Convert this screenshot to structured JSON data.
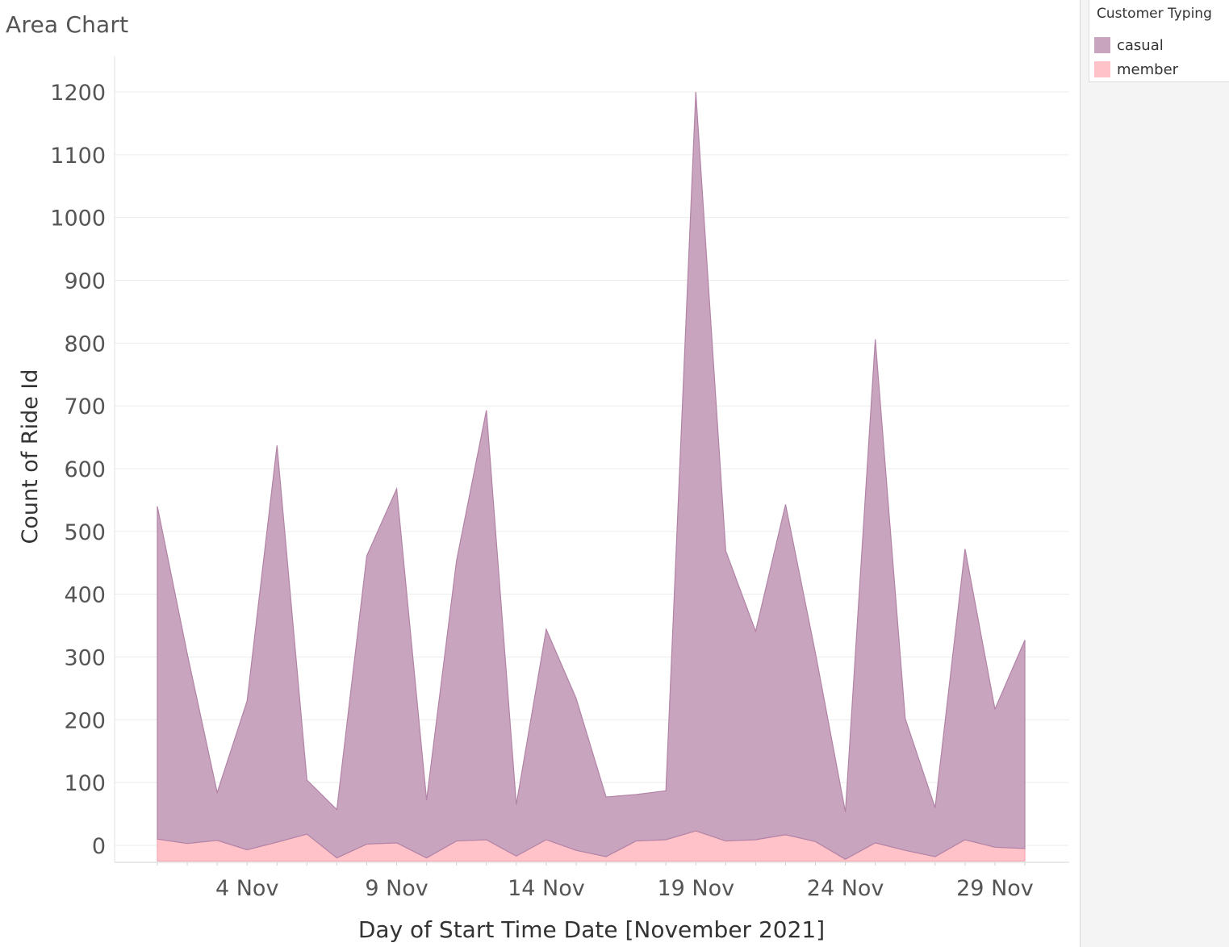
{
  "page": {
    "title": "Area Chart"
  },
  "legend": {
    "title": "Customer Typing",
    "items": [
      {
        "label": "casual",
        "color": "#c9a4bf"
      },
      {
        "label": "member",
        "color": "#ffc2c9"
      }
    ]
  },
  "chart_data": {
    "type": "area",
    "stacked": true,
    "xlabel": "Day of Start Time Date [November 2021]",
    "ylabel": "Count of Ride Id",
    "x": [
      "1 Nov",
      "2 Nov",
      "3 Nov",
      "4 Nov",
      "5 Nov",
      "6 Nov",
      "7 Nov",
      "8 Nov",
      "9 Nov",
      "10 Nov",
      "11 Nov",
      "12 Nov",
      "13 Nov",
      "14 Nov",
      "15 Nov",
      "16 Nov",
      "17 Nov",
      "18 Nov",
      "19 Nov",
      "20 Nov",
      "21 Nov",
      "22 Nov",
      "23 Nov",
      "24 Nov",
      "25 Nov",
      "26 Nov",
      "27 Nov",
      "28 Nov",
      "29 Nov",
      "30 Nov"
    ],
    "x_ticks": [
      "4 Nov",
      "9 Nov",
      "14 Nov",
      "19 Nov",
      "24 Nov",
      "29 Nov"
    ],
    "y_ticks": [
      0,
      100,
      200,
      300,
      400,
      500,
      600,
      700,
      800,
      900,
      1000,
      1100,
      1200
    ],
    "ylim": [
      -25,
      1200
    ],
    "grid": true,
    "legend_position": "top-right",
    "series": [
      {
        "name": "member",
        "color": "#ffc2c9",
        "values": [
          10,
          3,
          8,
          -7,
          5,
          18,
          -20,
          2,
          4,
          -20,
          7,
          9,
          -17,
          9,
          -8,
          -18,
          7,
          9,
          23,
          7,
          9,
          17,
          6,
          -22,
          4,
          -8,
          -18,
          9,
          -3,
          -5
        ]
      },
      {
        "name": "casual",
        "color": "#c9a4bf",
        "values": [
          530,
          302,
          76,
          237,
          632,
          86,
          77,
          459,
          564,
          92,
          446,
          684,
          82,
          335,
          242,
          95,
          74,
          78,
          1177,
          462,
          332,
          526,
          300,
          75,
          802,
          210,
          78,
          463,
          220,
          332
        ]
      }
    ]
  }
}
